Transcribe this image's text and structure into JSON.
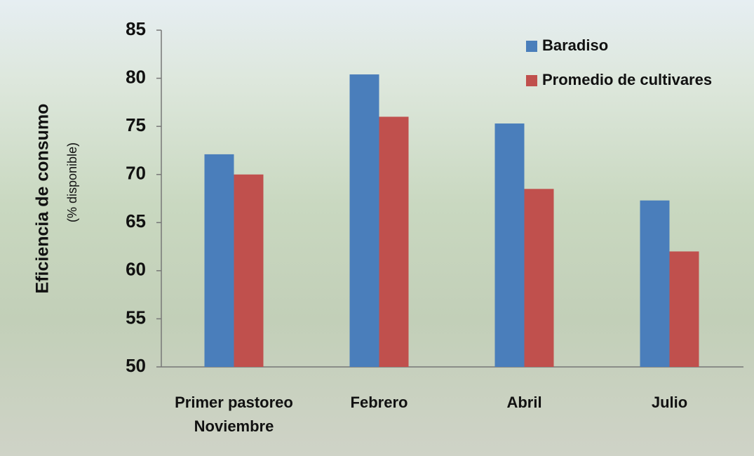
{
  "chart_data": {
    "type": "bar",
    "y_label": "Eficiencia de consumo",
    "y_sublabel": "(% disponible)",
    "categories": [
      "Primer pastoreo\nNoviembre",
      "Febrero",
      "Abril",
      "Julio"
    ],
    "series": [
      {
        "name": "Baradiso",
        "color": "#4a7ebb",
        "values": [
          72.1,
          80.4,
          75.3,
          67.3
        ]
      },
      {
        "name": "Promedio de cultivares",
        "color": "#c0504d",
        "values": [
          70,
          76,
          68.5,
          62
        ]
      }
    ],
    "ylim": [
      50,
      85
    ],
    "yticks": [
      50,
      55,
      60,
      65,
      70,
      75,
      80,
      85
    ],
    "legend": "top-right"
  }
}
